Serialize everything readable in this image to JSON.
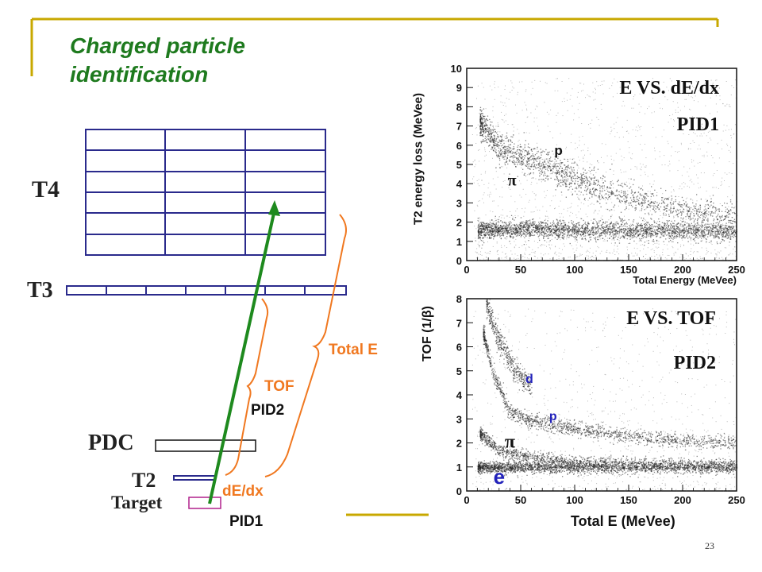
{
  "slide": {
    "title_line1": "Charged particle",
    "title_line2": "identification",
    "page_number": "23"
  },
  "detector": {
    "t4_label": "T4",
    "t3_label": "T3",
    "pdc_label": "PDC",
    "t2_label": "T2",
    "target_label": "Target",
    "range_total_e": "Total E",
    "range_tof": "TOF",
    "range_dedx": "dE/dx",
    "pid2_label": "PID2",
    "pid1_label": "PID1"
  },
  "colors": {
    "title": "#1e7a1e",
    "track": "#1e8a1e",
    "bracket": "#f07820",
    "detector_frame": "#2a2a8c",
    "target": "#b0208c",
    "accent_line": "#c8a800",
    "label_blue": "#2222bb"
  },
  "chart_data": [
    {
      "type": "scatter",
      "title": "E VS. dE/dx",
      "subtitle": "PID1",
      "xlabel": "Total Energy (MeVee)",
      "ylabel": "T2 energy loss (MeVee)",
      "xlim": [
        0,
        250
      ],
      "ylim": [
        0,
        10
      ],
      "xticks": [
        "0",
        "50",
        "100",
        "150",
        "200",
        "250"
      ],
      "yticks": [
        "0",
        "1",
        "2",
        "3",
        "4",
        "5",
        "6",
        "7",
        "8",
        "9",
        "10"
      ],
      "annotations": [
        {
          "text": "p",
          "x": 85,
          "y": 5.5
        },
        {
          "text": "π",
          "x": 42,
          "y": 3.9
        }
      ],
      "bands": [
        {
          "name": "π",
          "points": [
            [
              10,
              1.6
            ],
            [
              50,
              1.65
            ],
            [
              100,
              1.6
            ],
            [
              150,
              1.6
            ],
            [
              200,
              1.55
            ],
            [
              250,
              1.5
            ]
          ]
        },
        {
          "name": "p",
          "points": [
            [
              12,
              7.2
            ],
            [
              30,
              5.9
            ],
            [
              50,
              5.4
            ],
            [
              80,
              4.7
            ],
            [
              110,
              4.0
            ],
            [
              150,
              3.3
            ],
            [
              200,
              2.6
            ],
            [
              250,
              2.3
            ]
          ]
        }
      ]
    },
    {
      "type": "scatter",
      "title": "E VS. TOF",
      "subtitle": "PID2",
      "xlabel": "Total E (MeVee)",
      "ylabel": "TOF (1/β)",
      "xlim": [
        0,
        250
      ],
      "ylim": [
        0,
        8
      ],
      "xticks": [
        "0",
        "50",
        "100",
        "150",
        "200",
        "250"
      ],
      "yticks": [
        "0",
        "1",
        "2",
        "3",
        "4",
        "5",
        "6",
        "7",
        "8"
      ],
      "annotations": [
        {
          "text": "d",
          "x": 58,
          "y": 4.5
        },
        {
          "text": "p",
          "x": 80,
          "y": 2.95
        },
        {
          "text": "π",
          "x": 40,
          "y": 1.8
        },
        {
          "text": "e",
          "x": 30,
          "y": 0.3
        }
      ],
      "bands": [
        {
          "name": "e",
          "points": [
            [
              10,
              1.0
            ],
            [
              50,
              1.0
            ],
            [
              100,
              1.0
            ],
            [
              150,
              1.0
            ],
            [
              200,
              1.0
            ],
            [
              250,
              1.0
            ]
          ]
        },
        {
          "name": "π",
          "points": [
            [
              12,
              2.4
            ],
            [
              30,
              1.7
            ],
            [
              60,
              1.4
            ],
            [
              100,
              1.25
            ],
            [
              150,
              1.15
            ],
            [
              250,
              1.1
            ]
          ]
        },
        {
          "name": "p",
          "points": [
            [
              15,
              6.6
            ],
            [
              25,
              4.8
            ],
            [
              40,
              3.3
            ],
            [
              60,
              2.9
            ],
            [
              100,
              2.6
            ],
            [
              150,
              2.3
            ],
            [
              200,
              2.1
            ],
            [
              250,
              2.0
            ]
          ]
        },
        {
          "name": "d",
          "points": [
            [
              18,
              7.8
            ],
            [
              30,
              6.2
            ],
            [
              45,
              5.0
            ],
            [
              60,
              4.4
            ]
          ]
        }
      ]
    }
  ]
}
